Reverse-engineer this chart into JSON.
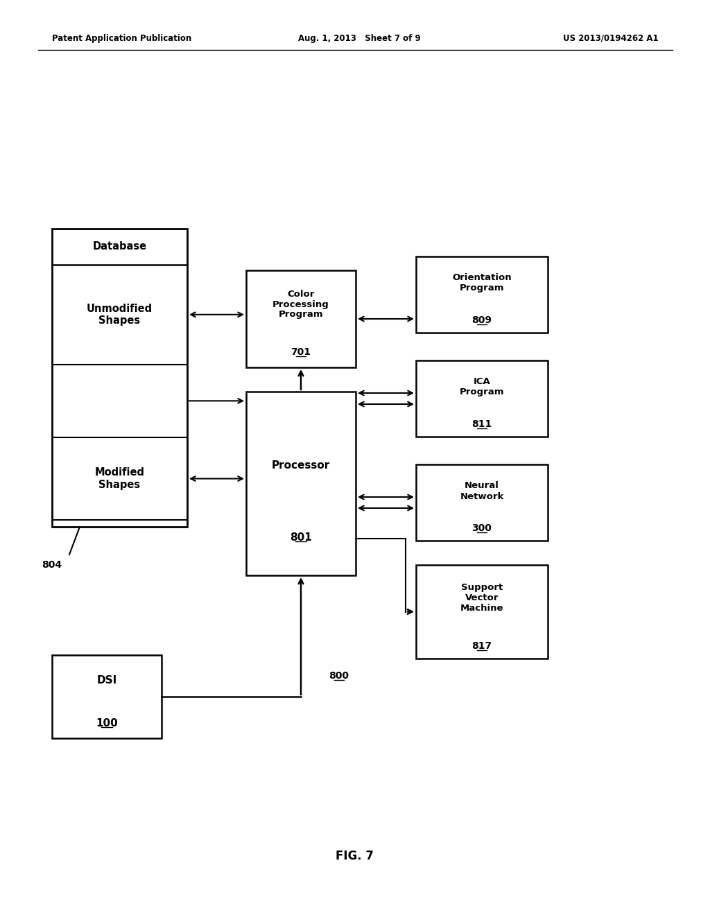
{
  "bg_color": "#ffffff",
  "header_left": "Patent Application Publication",
  "header_mid": "Aug. 1, 2013   Sheet 7 of 9",
  "header_right": "US 2013/0194262 A1",
  "fig_label": "FIG. 7",
  "font_size_header": 8.5,
  "font_size_box": 9.5,
  "font_size_fig": 11
}
